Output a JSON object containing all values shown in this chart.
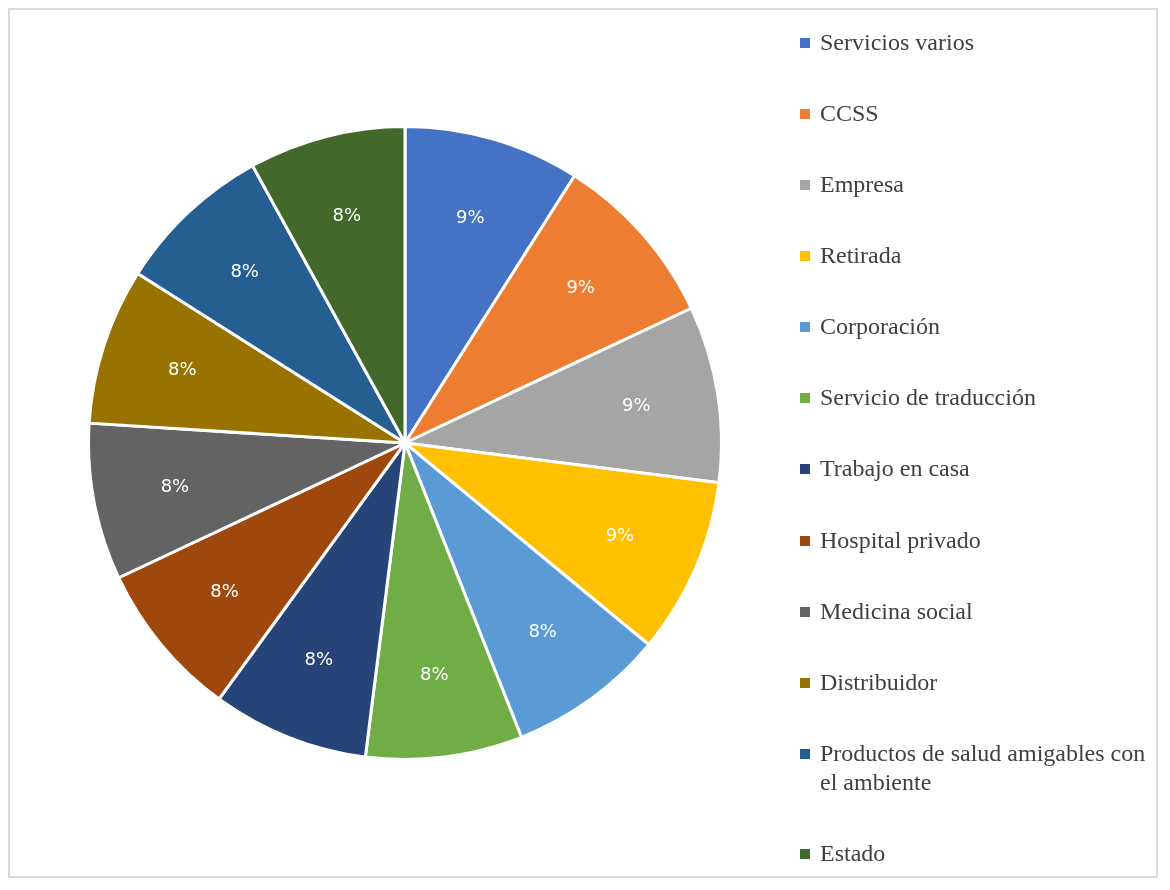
{
  "chart_data": {
    "type": "pie",
    "categories": [
      "Servicios varios",
      "CCSS",
      "Empresa",
      "Retirada",
      "Corporación",
      "Servicio de traducción",
      "Trabajo en casa",
      "Hospital privado",
      "Medicina social",
      "Distribuidor",
      "Productos de salud amigables con el ambiente",
      "Estado"
    ],
    "values": [
      9,
      9,
      9,
      9,
      8,
      8,
      8,
      8,
      8,
      8,
      8,
      8
    ],
    "value_labels": [
      "9%",
      "9%",
      "9%",
      "9%",
      "8%",
      "8%",
      "8%",
      "8%",
      "8%",
      "8%",
      "8%",
      "8%"
    ],
    "colors": [
      "#4472c4",
      "#ed7d31",
      "#a5a5a5",
      "#ffc000",
      "#5b9bd5",
      "#70ad47",
      "#264478",
      "#9e480e",
      "#636363",
      "#997300",
      "#255e91",
      "#43682b"
    ],
    "legend": "right"
  }
}
